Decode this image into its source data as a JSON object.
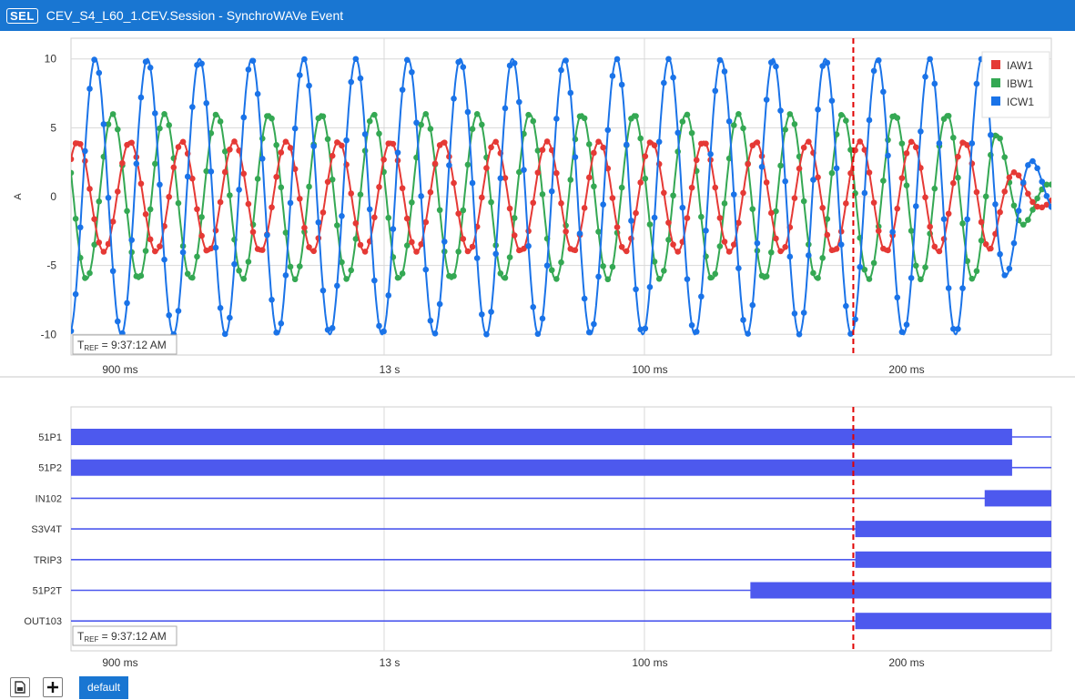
{
  "window": {
    "logo": "SEL",
    "title": "CEV_S4_L60_1.CEV.Session - SynchroWAVe Event"
  },
  "colors": {
    "accent": "#1976d2",
    "IAW1": "#e53935",
    "IBW1": "#34a853",
    "ICW1": "#1a73e8",
    "digital": "#4d59ee",
    "cursor": "#e00000"
  },
  "analog_chart": {
    "ylabel": "A",
    "y_ticks": [
      "10",
      "5",
      "0",
      "-5",
      "-10"
    ],
    "y_tick_values": [
      10,
      5,
      0,
      -5,
      -10
    ],
    "ylim": [
      -11.5,
      11.5
    ],
    "x_ticks": [
      "900 ms",
      "13 s",
      "100 ms",
      "200 ms"
    ],
    "tref": {
      "prefix": "T",
      "sub": "REF",
      "value": " = 9:37:12 AM"
    },
    "legend": [
      "IAW1",
      "IBW1",
      "ICW1"
    ],
    "chart_data": {
      "type": "line",
      "series": [
        {
          "name": "IAW1",
          "amplitude": 4.0,
          "cycles": 17.5,
          "decay_start_cycle": 17.6
        },
        {
          "name": "IBW1",
          "amplitude": 6.0,
          "cycles": 17.5,
          "decay_start_cycle": 17.6
        },
        {
          "name": "ICW1",
          "amplitude": 10.0,
          "cycles": 17.5,
          "decay_start_cycle": 17.6
        }
      ]
    }
  },
  "digital_chart": {
    "x_ticks": [
      "900 ms",
      "13 s",
      "100 ms",
      "200 ms"
    ],
    "tref": {
      "prefix": "T",
      "sub": "REF",
      "value": " = 9:37:12 AM"
    },
    "channels": [
      {
        "name": "51P1",
        "asserted": [
          [
            0.0,
            0.96
          ]
        ]
      },
      {
        "name": "51P2",
        "asserted": [
          [
            0.0,
            0.96
          ]
        ]
      },
      {
        "name": "IN102",
        "asserted": [
          [
            0.932,
            1.0
          ]
        ]
      },
      {
        "name": "S3V4T",
        "asserted": [
          [
            0.8,
            1.0
          ]
        ]
      },
      {
        "name": "TRIP3",
        "asserted": [
          [
            0.8,
            1.0
          ]
        ]
      },
      {
        "name": "51P2T",
        "asserted": [
          [
            0.693,
            1.0
          ]
        ]
      },
      {
        "name": "OUT103",
        "asserted": [
          [
            0.8,
            1.0
          ]
        ]
      }
    ]
  },
  "cursor_fraction": 0.798,
  "toolbar": {
    "tab_label": "default",
    "add_icon": "plus-icon",
    "page_icon": "document-icon"
  }
}
